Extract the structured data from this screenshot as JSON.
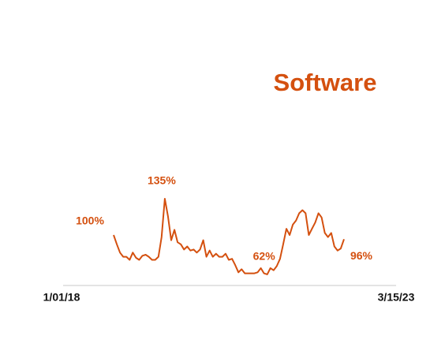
{
  "chart_data": {
    "type": "line",
    "title": "Software",
    "color": "#d4500f",
    "x_axis_labels": [
      "1/01/18",
      "3/15/23"
    ],
    "values": [
      100,
      91,
      83,
      79,
      79,
      76,
      83,
      78,
      76,
      80,
      81,
      79,
      76,
      76,
      79,
      98,
      135,
      118,
      95,
      105,
      93,
      91,
      86,
      89,
      85,
      86,
      83,
      86,
      95,
      79,
      85,
      79,
      82,
      79,
      79,
      82,
      76,
      77,
      71,
      64,
      67,
      63,
      63,
      63,
      63,
      64,
      68,
      63,
      62,
      68,
      66,
      70,
      77,
      91,
      106,
      100,
      110,
      114,
      121,
      124,
      121,
      100,
      106,
      112,
      121,
      117,
      102,
      98,
      102,
      89,
      85,
      87,
      96
    ],
    "value_labels": [
      "100%",
      null,
      null,
      null,
      null,
      null,
      null,
      null,
      null,
      null,
      null,
      null,
      null,
      null,
      null,
      null,
      "135%",
      null,
      null,
      null,
      null,
      null,
      null,
      null,
      null,
      null,
      null,
      null,
      null,
      null,
      null,
      null,
      null,
      null,
      null,
      null,
      null,
      null,
      null,
      null,
      null,
      null,
      null,
      null,
      null,
      null,
      null,
      null,
      "62%",
      null,
      null,
      null,
      null,
      null,
      null,
      null,
      null,
      null,
      null,
      null,
      null,
      null,
      null,
      null,
      null,
      null,
      null,
      null,
      null,
      null,
      null,
      null,
      "96%"
    ]
  }
}
